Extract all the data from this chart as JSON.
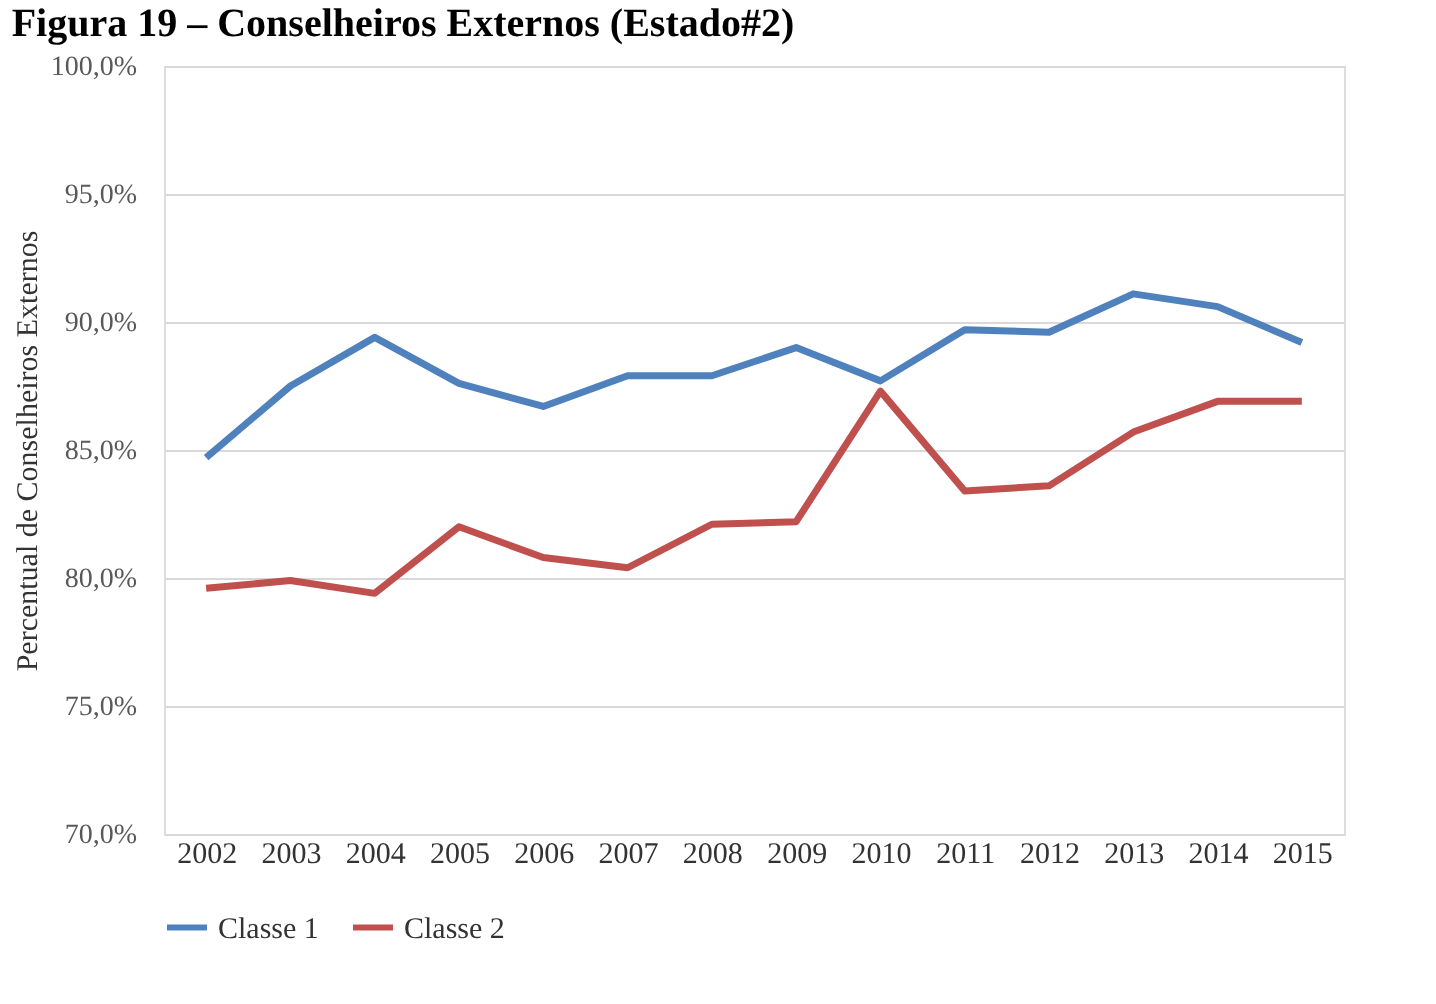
{
  "chart_data": {
    "type": "line",
    "title": "Figura 19 – Conselheiros Externos (Estado#2)",
    "ylabel": "Percentual de Conselheiros Externos",
    "categories": [
      "2002",
      "2003",
      "2004",
      "2005",
      "2006",
      "2007",
      "2008",
      "2009",
      "2010",
      "2011",
      "2012",
      "2013",
      "2014",
      "2015"
    ],
    "series": [
      {
        "name": "Classe 1",
        "color": "#4f81bd",
        "values": [
          84.7,
          87.5,
          89.4,
          87.6,
          86.7,
          87.9,
          87.9,
          89.0,
          87.7,
          89.7,
          89.6,
          91.1,
          90.6,
          89.2
        ]
      },
      {
        "name": "Classe 2",
        "color": "#c0504d",
        "values": [
          79.6,
          79.9,
          79.4,
          82.0,
          80.8,
          80.4,
          82.1,
          82.2,
          87.3,
          83.4,
          83.6,
          85.7,
          86.9,
          86.9
        ]
      }
    ],
    "ylim": [
      70,
      100
    ],
    "yticks": [
      {
        "value": 70,
        "label": "70,0%"
      },
      {
        "value": 75,
        "label": "75,0%"
      },
      {
        "value": 80,
        "label": "80,0%"
      },
      {
        "value": 85,
        "label": "85,0%"
      },
      {
        "value": 90,
        "label": "90,0%"
      },
      {
        "value": 95,
        "label": "95,0%"
      },
      {
        "value": 100,
        "label": "100,0%"
      }
    ],
    "grid": "y",
    "legend": "bottom",
    "marker": "none",
    "line_style": "solid"
  }
}
